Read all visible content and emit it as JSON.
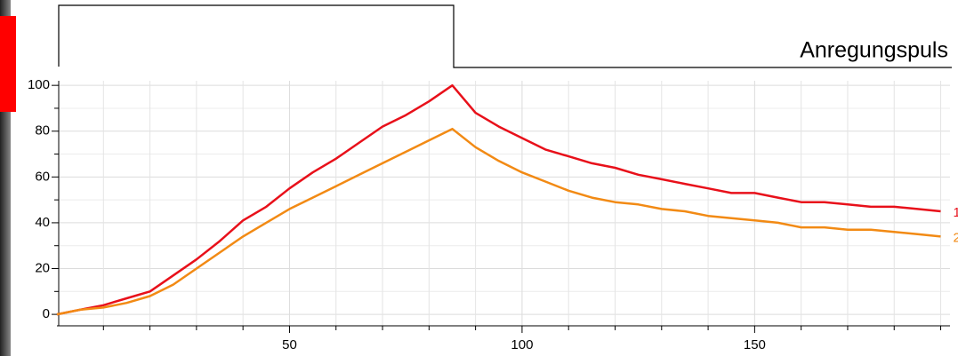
{
  "chart_data": {
    "type": "line",
    "pulse_label": "Anregungspuls",
    "x": [
      0,
      5,
      10,
      15,
      20,
      25,
      30,
      35,
      40,
      45,
      50,
      55,
      60,
      65,
      70,
      75,
      80,
      85,
      90,
      95,
      100,
      105,
      110,
      115,
      120,
      125,
      130,
      135,
      140,
      145,
      150,
      155,
      160,
      165,
      170,
      175,
      180,
      185,
      190
    ],
    "series": [
      {
        "name": "1",
        "color": "#e8101a",
        "values": [
          0,
          2,
          4,
          7,
          10,
          17,
          24,
          32,
          41,
          47,
          55,
          62,
          68,
          75,
          82,
          87,
          93,
          100,
          88,
          82,
          77,
          72,
          69,
          66,
          64,
          61,
          59,
          57,
          55,
          53,
          53,
          51,
          49,
          49,
          48,
          47,
          47,
          46,
          45
        ]
      },
      {
        "name": "2",
        "color": "#f28a14",
        "values": [
          0,
          2,
          3,
          5,
          8,
          13,
          20,
          27,
          34,
          40,
          46,
          51,
          56,
          61,
          66,
          71,
          76,
          81,
          73,
          67,
          62,
          58,
          54,
          51,
          49,
          48,
          46,
          45,
          43,
          42,
          41,
          40,
          38,
          38,
          37,
          37,
          36,
          35,
          34
        ]
      }
    ],
    "xlim": [
      0,
      192
    ],
    "ylim": [
      -5,
      102
    ],
    "xticks": [
      50,
      100,
      150
    ],
    "xminorticks": [
      10,
      20,
      30,
      40,
      60,
      70,
      80,
      90,
      110,
      120,
      130,
      140,
      160,
      170,
      180,
      190
    ],
    "yticks": [
      0,
      20,
      40,
      60,
      80,
      100
    ],
    "yminorticks": [
      10,
      30,
      50,
      70,
      90
    ],
    "grid": true
  }
}
